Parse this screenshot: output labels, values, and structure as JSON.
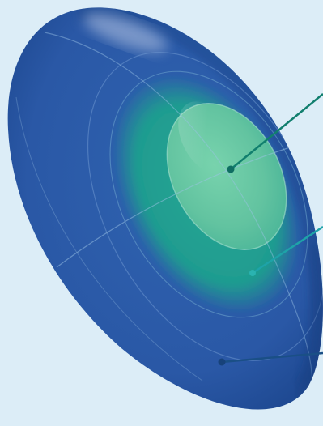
{
  "diagram": {
    "subject": "contact-lens-zones",
    "colors": {
      "background": "#dcedf7",
      "outer_zone": "#2c5aa8",
      "middle_zone": "#1b9a90",
      "central_zone": "#63c4a0",
      "central_leader": "#117f6e",
      "middle_leader": "#1ea3a8",
      "outer_leader": "#1a4f86"
    },
    "zones": [
      {
        "id": "central-zone",
        "leader_color_key": "central_leader"
      },
      {
        "id": "middle-zone",
        "leader_color_key": "middle_leader"
      },
      {
        "id": "outer-zone",
        "leader_color_key": "outer_leader"
      }
    ]
  }
}
